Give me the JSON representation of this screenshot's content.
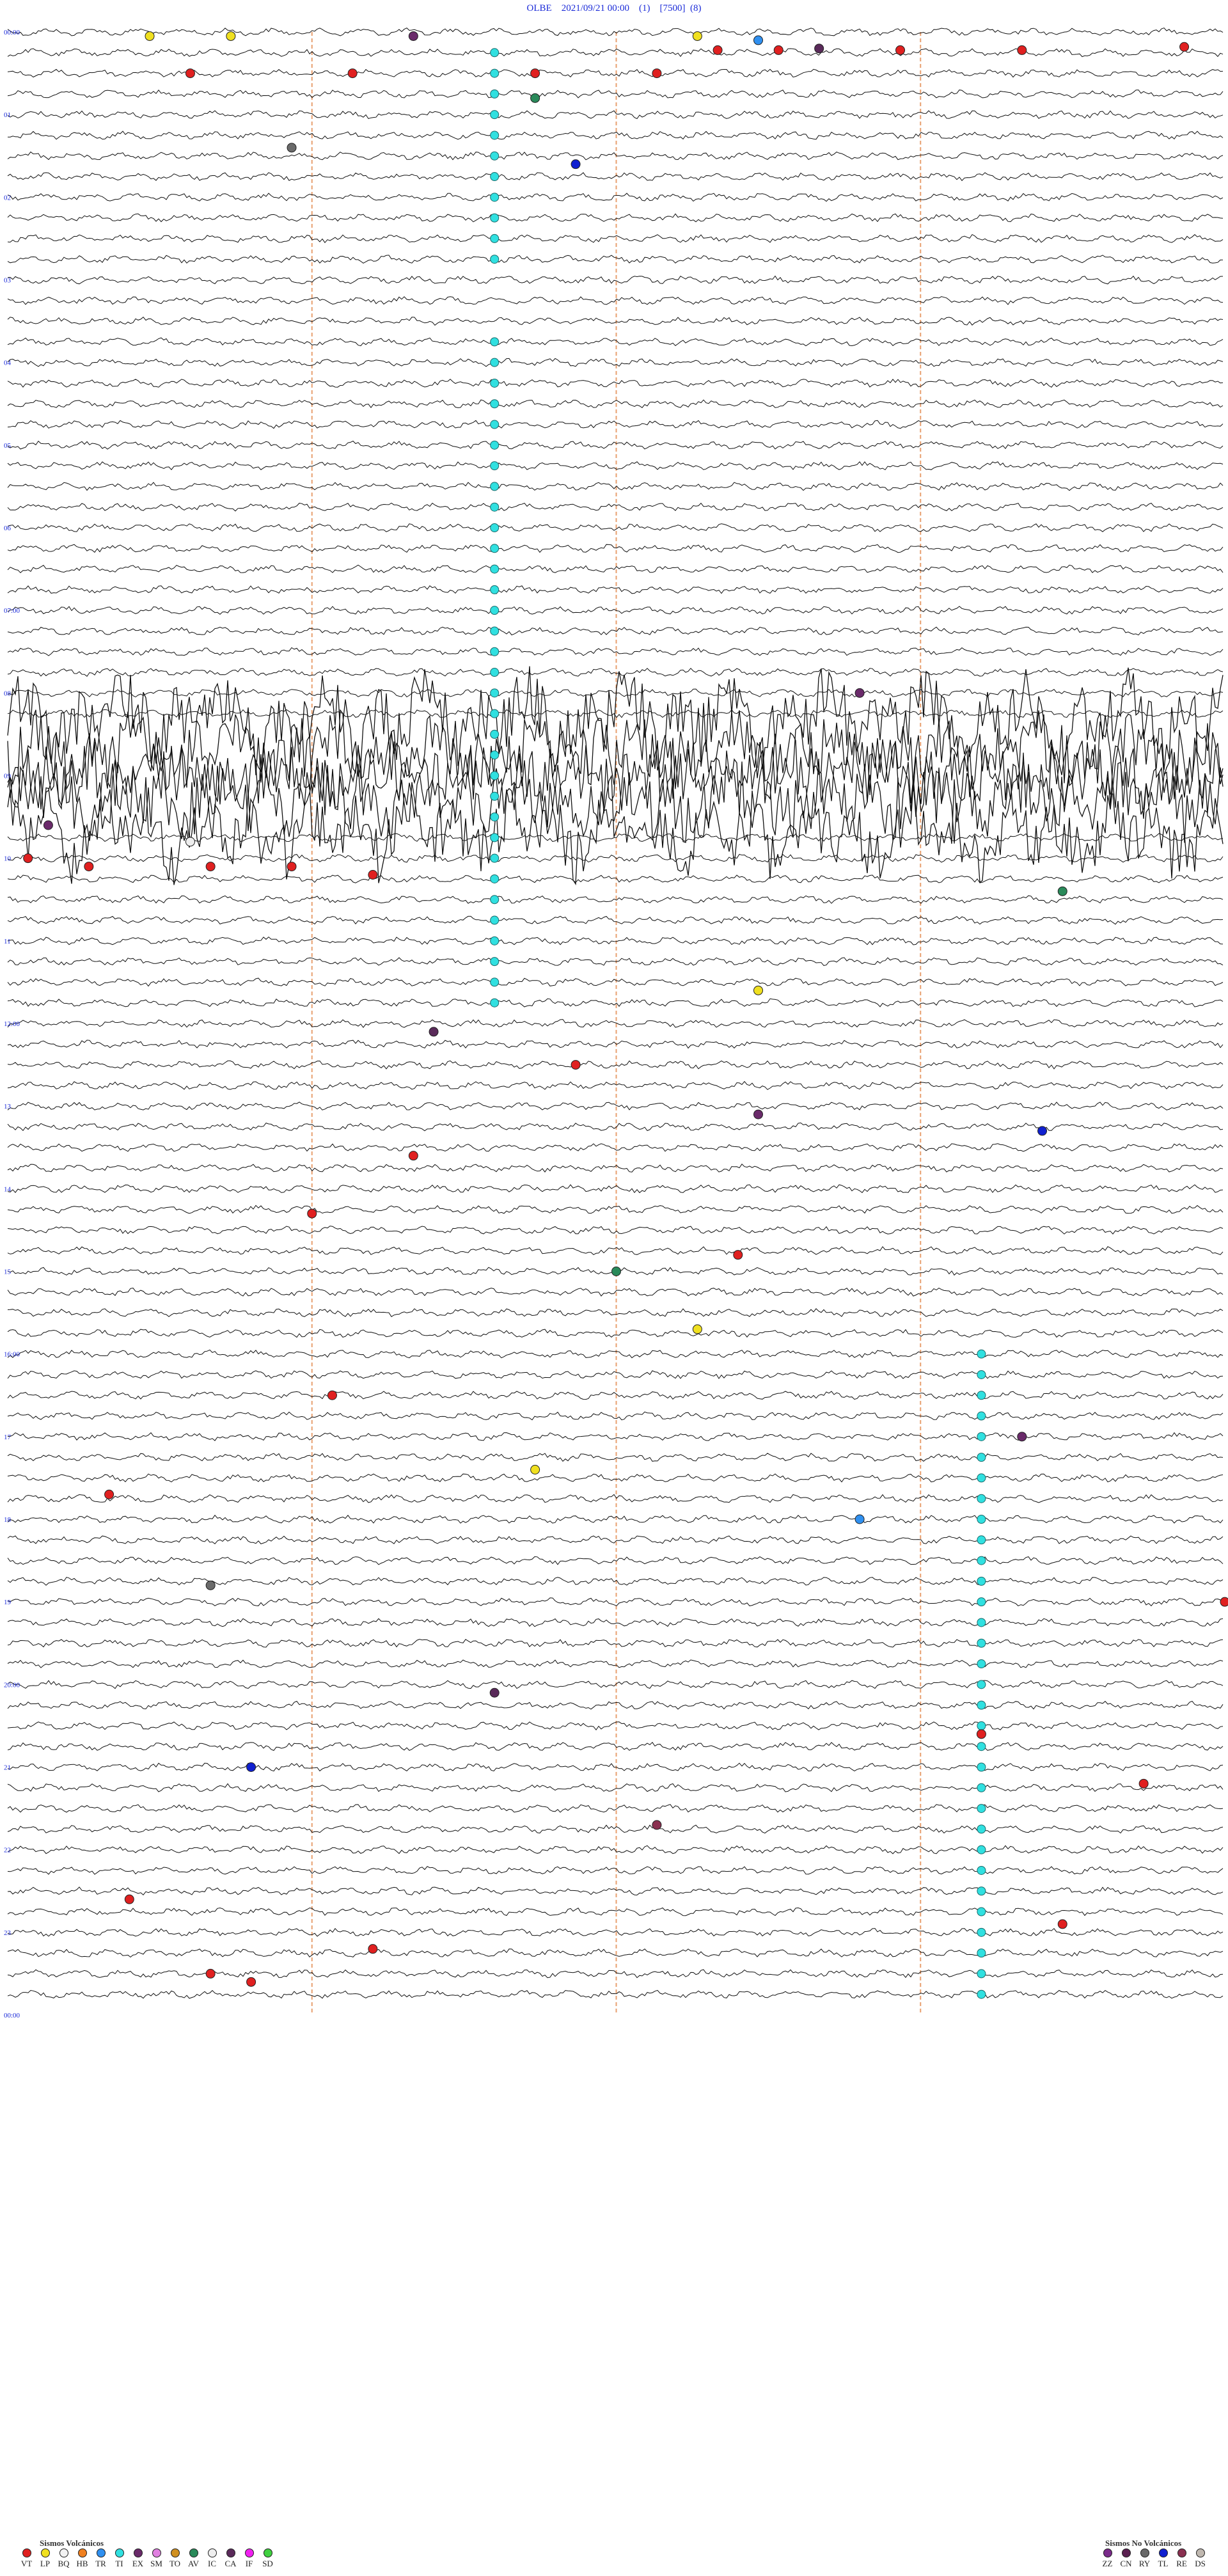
{
  "header": {
    "station": "OLBE",
    "datetime": "2021/09/21 00:00",
    "channel": "(1)",
    "scale": "[7500]",
    "extra": "(8)"
  },
  "chart_data": {
    "type": "line",
    "title": "OLBE 2021/09/21 00:00 (1) [7500] (8)",
    "rows_per_hour": 4,
    "hours": 24,
    "time_labels": [
      "00:00",
      "01",
      "02",
      "03",
      "04",
      "05",
      "06",
      "07:00",
      "08",
      "09",
      "10",
      "11",
      "12:00",
      "13",
      "14",
      "15",
      "16:00",
      "17",
      "18",
      "19",
      "20:00",
      "21",
      "22",
      "23",
      "00:00"
    ],
    "minute_markers": [
      15,
      30,
      45
    ],
    "storm_hours": [
      8.5,
      9.7
    ],
    "event_classes": [
      {
        "code": "VT",
        "color": "#e02020"
      },
      {
        "code": "LP",
        "color": "#f0e020"
      },
      {
        "code": "BQ",
        "color": "#f3f3f3"
      },
      {
        "code": "HB",
        "color": "#f08020"
      },
      {
        "code": "TR",
        "color": "#3090f0"
      },
      {
        "code": "TI",
        "color": "#30e0e0"
      },
      {
        "code": "EX",
        "color": "#6a2a6a"
      },
      {
        "code": "SM",
        "color": "#e080e0"
      },
      {
        "code": "TO",
        "color": "#d09020"
      },
      {
        "code": "AV",
        "color": "#2a8a5a"
      },
      {
        "code": "IC",
        "color": "#eeeeee"
      },
      {
        "code": "CA",
        "color": "#5a2a5a"
      },
      {
        "code": "IF",
        "color": "#f020f0"
      },
      {
        "code": "SD",
        "color": "#40d040"
      },
      {
        "code": "ZZ",
        "color": "#7a2a8a"
      },
      {
        "code": "CN",
        "color": "#5a2050"
      },
      {
        "code": "RY",
        "color": "#6a6a6a"
      },
      {
        "code": "TL",
        "color": "#1020d0"
      },
      {
        "code": "RE",
        "color": "#8a3050"
      },
      {
        "code": "DS",
        "color": "#c0b8b0"
      }
    ],
    "events": [
      {
        "t": 0.05,
        "m": 7,
        "c": "LP"
      },
      {
        "t": 0.05,
        "m": 11,
        "c": "LP"
      },
      {
        "t": 0.05,
        "m": 20,
        "c": "EX"
      },
      {
        "t": 0.05,
        "m": 34,
        "c": "LP"
      },
      {
        "t": 0.1,
        "m": 37,
        "c": "TR"
      },
      {
        "t": 0.2,
        "m": 40,
        "c": "CA"
      },
      {
        "t": 0.22,
        "m": 35,
        "c": "VT"
      },
      {
        "t": 0.22,
        "m": 38,
        "c": "VT"
      },
      {
        "t": 0.22,
        "m": 44,
        "c": "VT"
      },
      {
        "t": 0.22,
        "m": 50,
        "c": "VT"
      },
      {
        "t": 0.18,
        "m": 58,
        "c": "VT"
      },
      {
        "t": 0.22,
        "m": 72,
        "c": "VT"
      },
      {
        "t": 0.22,
        "m": 80,
        "c": "VT"
      },
      {
        "t": 0.1,
        "m": 94,
        "c": "VT"
      },
      {
        "t": 0.1,
        "m": 100,
        "c": "VT"
      },
      {
        "t": 0.1,
        "m": 104,
        "c": "VT"
      },
      {
        "t": 0.1,
        "m": 110,
        "c": "VT"
      },
      {
        "t": 0.1,
        "m": 114,
        "c": "VT"
      },
      {
        "t": 0.5,
        "m": 9,
        "c": "VT"
      },
      {
        "t": 0.5,
        "m": 17,
        "c": "VT"
      },
      {
        "t": 0.5,
        "m": 26,
        "c": "VT"
      },
      {
        "t": 0.5,
        "m": 32,
        "c": "VT"
      },
      {
        "t": 0.8,
        "m": 26,
        "c": "AV"
      },
      {
        "t": 1.4,
        "m": 14,
        "c": "RY"
      },
      {
        "t": 1.6,
        "m": 28,
        "c": "TL"
      },
      {
        "t": 2.5,
        "m": 68,
        "c": "IC"
      },
      {
        "t": 2.0,
        "m": 94,
        "c": "DS"
      },
      {
        "t": 2.3,
        "m": 87,
        "c": "EX"
      },
      {
        "t": 0.4,
        "m": 93,
        "c": "RE"
      },
      {
        "t": 0.3,
        "m": 118,
        "c": "TL"
      },
      {
        "t": 0.2,
        "m": 117,
        "c": "CA"
      },
      {
        "t": 0.3,
        "m": 120,
        "c": "RY"
      },
      {
        "t": 7.1,
        "m": 81,
        "c": "VT"
      },
      {
        "t": 7.6,
        "m": 112,
        "c": "TL"
      },
      {
        "t": 8.0,
        "m": 42,
        "c": "EX"
      },
      {
        "t": 8.6,
        "m": 85,
        "c": "EX"
      },
      {
        "t": 9.6,
        "m": 2,
        "c": "EX"
      },
      {
        "t": 9.8,
        "m": 9,
        "c": "IC"
      },
      {
        "t": 10.0,
        "m": 1,
        "c": "VT"
      },
      {
        "t": 10.1,
        "m": 4,
        "c": "VT"
      },
      {
        "t": 10.1,
        "m": 10,
        "c": "VT"
      },
      {
        "t": 10.1,
        "m": 14,
        "c": "VT"
      },
      {
        "t": 10.2,
        "m": 18,
        "c": "VT"
      },
      {
        "t": 10.3,
        "m": 118,
        "c": "VT"
      },
      {
        "t": 10.5,
        "m": 94,
        "c": "TL"
      },
      {
        "t": 10.4,
        "m": 52,
        "c": "AV"
      },
      {
        "t": 11.0,
        "m": 62,
        "c": "EX"
      },
      {
        "t": 11.6,
        "m": 37,
        "c": "LP"
      },
      {
        "t": 12.1,
        "m": 21,
        "c": "CA"
      },
      {
        "t": 12.5,
        "m": 28,
        "c": "VT"
      },
      {
        "t": 13.1,
        "m": 37,
        "c": "EX"
      },
      {
        "t": 13.3,
        "m": 51,
        "c": "TL"
      },
      {
        "t": 13.6,
        "m": 20,
        "c": "VT"
      },
      {
        "t": 14.0,
        "m": 88,
        "c": "VT"
      },
      {
        "t": 14.3,
        "m": 15,
        "c": "VT"
      },
      {
        "t": 14.8,
        "m": 36,
        "c": "VT"
      },
      {
        "t": 15.0,
        "m": 30,
        "c": "AV"
      },
      {
        "t": 15.3,
        "m": 112,
        "c": "EX"
      },
      {
        "t": 15.7,
        "m": 34,
        "c": "LP"
      },
      {
        "t": 16.1,
        "m": 108,
        "c": "CA"
      },
      {
        "t": 16.3,
        "m": 62,
        "c": "LP"
      },
      {
        "t": 16.5,
        "m": 16,
        "c": "VT"
      },
      {
        "t": 17.0,
        "m": 50,
        "c": "EX"
      },
      {
        "t": 17.2,
        "m": 92,
        "c": "VT"
      },
      {
        "t": 17.4,
        "m": 26,
        "c": "LP"
      },
      {
        "t": 17.7,
        "m": 5,
        "c": "VT"
      },
      {
        "t": 18.0,
        "m": 42,
        "c": "TR"
      },
      {
        "t": 18.2,
        "m": 70,
        "c": "VT"
      },
      {
        "t": 18.5,
        "m": 98,
        "c": "VT"
      },
      {
        "t": 18.8,
        "m": 10,
        "c": "RY"
      },
      {
        "t": 19.0,
        "m": 60,
        "c": "VT"
      },
      {
        "t": 19.3,
        "m": 76,
        "c": "TL"
      },
      {
        "t": 19.6,
        "m": 112,
        "c": "VT"
      },
      {
        "t": 20.1,
        "m": 24,
        "c": "CA"
      },
      {
        "t": 20.3,
        "m": 66,
        "c": "LP"
      },
      {
        "t": 20.6,
        "m": 48,
        "c": "VT"
      },
      {
        "t": 21.0,
        "m": 12,
        "c": "TL"
      },
      {
        "t": 21.2,
        "m": 56,
        "c": "VT"
      },
      {
        "t": 21.4,
        "m": 108,
        "c": "VT"
      },
      {
        "t": 21.7,
        "m": 32,
        "c": "RE"
      },
      {
        "t": 22.0,
        "m": 88,
        "c": "VT"
      },
      {
        "t": 22.3,
        "m": 104,
        "c": "TR"
      },
      {
        "t": 22.6,
        "m": 6,
        "c": "VT"
      },
      {
        "t": 22.9,
        "m": 52,
        "c": "VT"
      },
      {
        "t": 23.2,
        "m": 18,
        "c": "VT"
      },
      {
        "t": 23.5,
        "m": 10,
        "c": "VT"
      },
      {
        "t": 23.6,
        "m": 12,
        "c": "VT"
      },
      {
        "t": 23.8,
        "m": 62,
        "c": "VT"
      }
    ],
    "ti_columns": [
      {
        "start": 0.2,
        "end": 3.0,
        "m": 24
      },
      {
        "start": 3.8,
        "end": 12.0,
        "m": 24
      },
      {
        "start": 16.1,
        "end": 24.0,
        "m": 48
      }
    ]
  },
  "legend_volcanic": {
    "title": "Sismos Volcánicos",
    "items": [
      "VT",
      "LP",
      "BQ",
      "HB",
      "TR",
      "TI",
      "EX",
      "SM",
      "TO",
      "AV",
      "IC",
      "CA",
      "IF",
      "SD"
    ]
  },
  "legend_nonvolcanic": {
    "title": "Sismos No Volcánicos",
    "items": [
      "ZZ",
      "CN",
      "RY",
      "TL",
      "RE",
      "DS"
    ]
  }
}
